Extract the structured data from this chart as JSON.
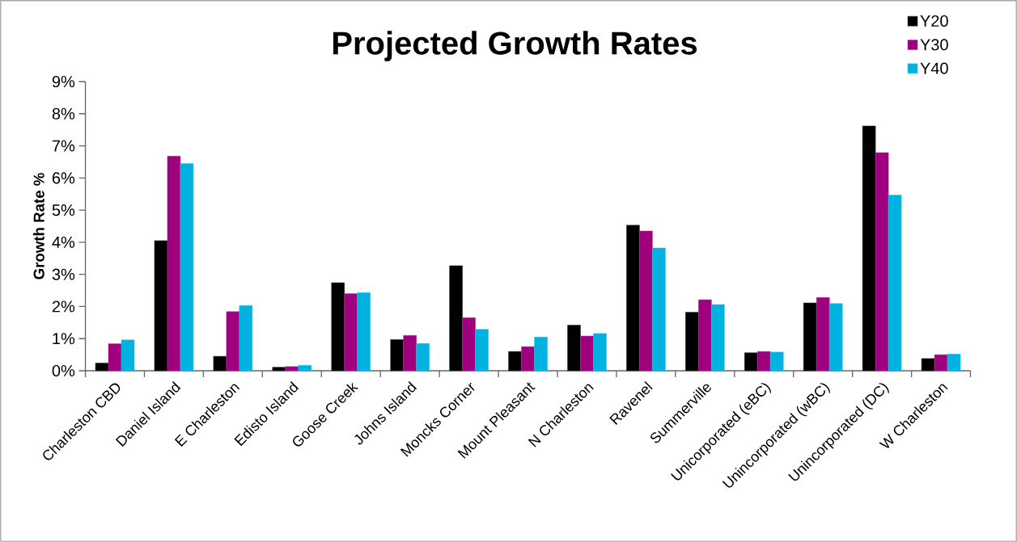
{
  "chart_data": {
    "type": "bar",
    "title": "Projected Growth Rates",
    "ylabel": "Growth Rate %",
    "categories": [
      "Charleston CBD",
      "Daniel Island",
      "E Charleston",
      "Edisto Island",
      "Goose Creek",
      "Johns Island",
      "Moncks Corner",
      "Mount Pleasant",
      "N Charleston",
      "Ravenel",
      "Summerville",
      "Unicorporated (eBC)",
      "Unincorporated (wBC)",
      "Unincorporated (DC)",
      "W Charleston"
    ],
    "series": [
      {
        "name": "Y20",
        "color": "#000000",
        "values": [
          0.24,
          4.05,
          0.45,
          0.11,
          2.74,
          0.97,
          3.27,
          0.6,
          1.42,
          4.53,
          1.82,
          0.56,
          2.11,
          7.62,
          0.38
        ]
      },
      {
        "name": "Y30",
        "color": "#9e007e",
        "values": [
          0.84,
          6.68,
          1.84,
          0.13,
          2.4,
          1.1,
          1.65,
          0.75,
          1.08,
          4.35,
          2.21,
          0.6,
          2.28,
          6.79,
          0.5
        ]
      },
      {
        "name": "Y40",
        "color": "#00b2e0",
        "values": [
          0.96,
          6.45,
          2.03,
          0.17,
          2.43,
          0.85,
          1.29,
          1.05,
          1.16,
          3.82,
          2.06,
          0.58,
          2.09,
          5.47,
          0.52
        ]
      }
    ],
    "ylim": [
      0,
      9
    ],
    "yticks": [
      {
        "value": 0,
        "label": "0%"
      },
      {
        "value": 1,
        "label": "1%"
      },
      {
        "value": 2,
        "label": "2%"
      },
      {
        "value": 3,
        "label": "3%"
      },
      {
        "value": 4,
        "label": "4%"
      },
      {
        "value": 5,
        "label": "5%"
      },
      {
        "value": 6,
        "label": "6%"
      },
      {
        "value": 7,
        "label": "7%"
      },
      {
        "value": 8,
        "label": "8%"
      },
      {
        "value": 9,
        "label": "9%"
      }
    ],
    "grid": false,
    "legend": "top right"
  }
}
